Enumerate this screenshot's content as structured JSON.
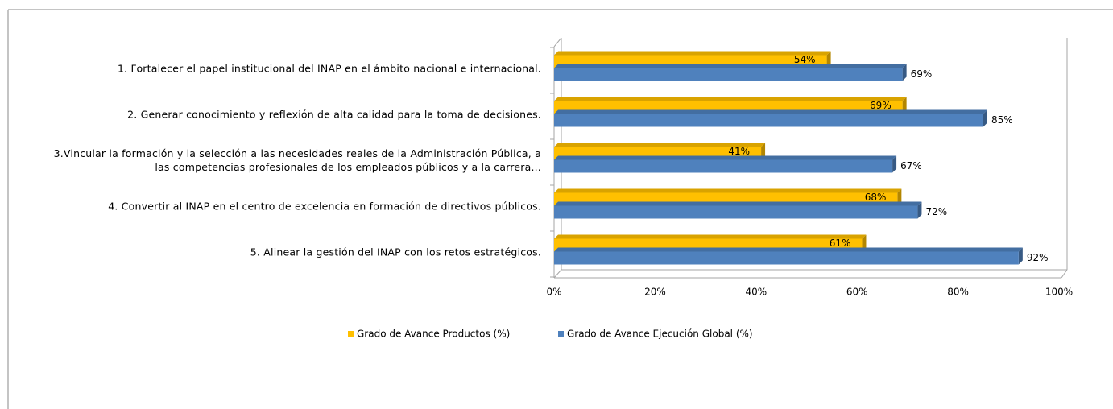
{
  "chart_data": {
    "type": "bar",
    "orientation": "horizontal",
    "categories": [
      "1. Fortalecer el papel institucional del INAP en el ámbito nacional e internacional.",
      "2. Generar conocimiento y reflexión de alta calidad para la toma de decisiones.",
      "3.Vincular la formación y la selección a las necesidades reales de la Administración Pública, a las competencias profesionales de los empleados públicos y a la carrera...",
      "4. Convertir al INAP en el centro de excelencia en formación de directivos públicos.",
      "5. Alinear la gestión del INAP con los retos estratégicos."
    ],
    "series": [
      {
        "name": "Grado de Avance Productos (%)",
        "color": "#ffc000",
        "values": [
          54,
          69,
          41,
          68,
          61
        ],
        "value_labels": [
          "54%",
          "69%",
          "41%",
          "68%",
          "61%"
        ]
      },
      {
        "name": "Grado de Avance Ejecución Global (%)",
        "color": "#4f81bd",
        "values": [
          69,
          85,
          67,
          72,
          92
        ],
        "value_labels": [
          "69%",
          "85%",
          "67%",
          "72%",
          "92%"
        ]
      }
    ],
    "xlim": [
      0,
      100
    ],
    "xticks": [
      {
        "value": 0,
        "label": "0%"
      },
      {
        "value": 20,
        "label": "20%"
      },
      {
        "value": 40,
        "label": "40%"
      },
      {
        "value": 60,
        "label": "60%"
      },
      {
        "value": 80,
        "label": "80%"
      },
      {
        "value": 100,
        "label": "100%"
      }
    ],
    "legend": "bottom"
  }
}
